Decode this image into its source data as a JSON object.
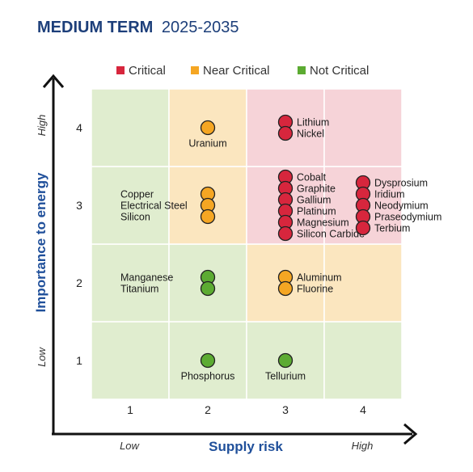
{
  "chart_data": {
    "type": "scatter",
    "title": "MEDIUM TERM",
    "subtitle": "2025-2035",
    "xlabel": "Supply risk",
    "ylabel": "Importance to energy",
    "x_ticks": [
      "1",
      "2",
      "3",
      "4"
    ],
    "y_ticks": [
      "1",
      "2",
      "3",
      "4"
    ],
    "x_range_labels": [
      "Low",
      "High"
    ],
    "y_range_labels": [
      "Low",
      "High"
    ],
    "xlim": [
      0.5,
      4.5
    ],
    "ylim": [
      0.5,
      4.5
    ],
    "grid": true,
    "legend_position": "top",
    "legend": [
      {
        "name": "Critical",
        "color": "#d7263d"
      },
      {
        "name": "Near Critical",
        "color": "#f5a623"
      },
      {
        "name": "Not Critical",
        "color": "#5cab32"
      }
    ],
    "zone_colors": {
      "critical": "#f6d3d8",
      "near": "#fbe6bf",
      "not": "#e0edcf"
    },
    "zones": [
      [
        "not",
        "not",
        "not",
        "not"
      ],
      [
        "not",
        "not",
        "near",
        "near"
      ],
      [
        "not",
        "near",
        "critical",
        "critical"
      ],
      [
        "not",
        "near",
        "critical",
        "critical"
      ]
    ],
    "groups": [
      {
        "x": 2,
        "y": 4,
        "category": "Near Critical",
        "items": [
          "Uranium"
        ],
        "label_side": "below"
      },
      {
        "x": 3,
        "y": 4,
        "category": "Critical",
        "items": [
          "Lithium",
          "Nickel"
        ],
        "label_side": "right"
      },
      {
        "x": 2,
        "y": 3,
        "category": "Near Critical",
        "items": [
          "Copper",
          "Electrical Steel",
          "Silicon"
        ],
        "label_side": "left"
      },
      {
        "x": 3,
        "y": 3,
        "category": "Critical",
        "items": [
          "Cobalt",
          "Graphite",
          "Gallium",
          "Platinum",
          "Magnesium",
          "Silicon Carbide"
        ],
        "label_side": "right"
      },
      {
        "x": 4,
        "y": 3,
        "category": "Critical",
        "items": [
          "Dysprosium",
          "Iridium",
          "Neodymium",
          "Praseodymium",
          "Terbium"
        ],
        "label_side": "right"
      },
      {
        "x": 2,
        "y": 2,
        "category": "Not Critical",
        "items": [
          "Manganese",
          "Titanium"
        ],
        "label_side": "left"
      },
      {
        "x": 3,
        "y": 2,
        "category": "Near Critical",
        "items": [
          "Aluminum",
          "Fluorine"
        ],
        "label_side": "right"
      },
      {
        "x": 2,
        "y": 1,
        "category": "Not Critical",
        "items": [
          "Phosphorus"
        ],
        "label_side": "below"
      },
      {
        "x": 3,
        "y": 1,
        "category": "Not Critical",
        "items": [
          "Tellurium"
        ],
        "label_side": "below"
      }
    ]
  }
}
